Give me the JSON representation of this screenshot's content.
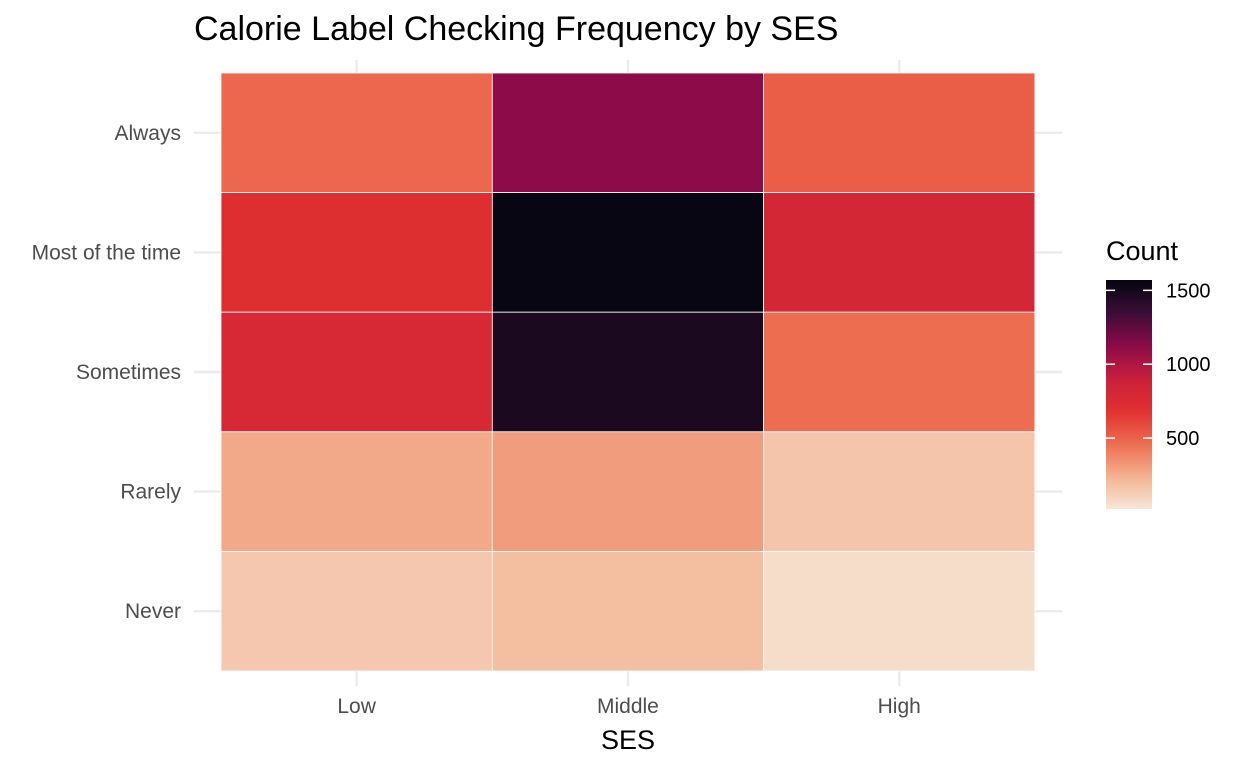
{
  "chart_data": {
    "type": "heatmap",
    "title": "Calorie Label Checking Frequency by SES",
    "xlabel": "SES",
    "ylabel": "",
    "x_categories": [
      "Low",
      "Middle",
      "High"
    ],
    "y_categories": [
      "Always",
      "Most of the time",
      "Sometimes",
      "Rarely",
      "Never"
    ],
    "values": [
      [
        480,
        1120,
        520
      ],
      [
        700,
        1550,
        800
      ],
      [
        780,
        1480,
        460
      ],
      [
        270,
        310,
        160
      ],
      [
        150,
        190,
        60
      ]
    ],
    "legend": {
      "title": "Count",
      "placement": "right",
      "ticks": [
        500,
        1000,
        1500
      ],
      "tick_labels": [
        "500",
        "1000",
        "1500"
      ],
      "range": [
        20,
        1570
      ]
    },
    "color_scale": [
      "#f7e6d7",
      "#f3b291",
      "#ed6c50",
      "#e0302f",
      "#c91f3c",
      "#8a0a48",
      "#3b0e36",
      "#03050f"
    ],
    "grid": true
  }
}
